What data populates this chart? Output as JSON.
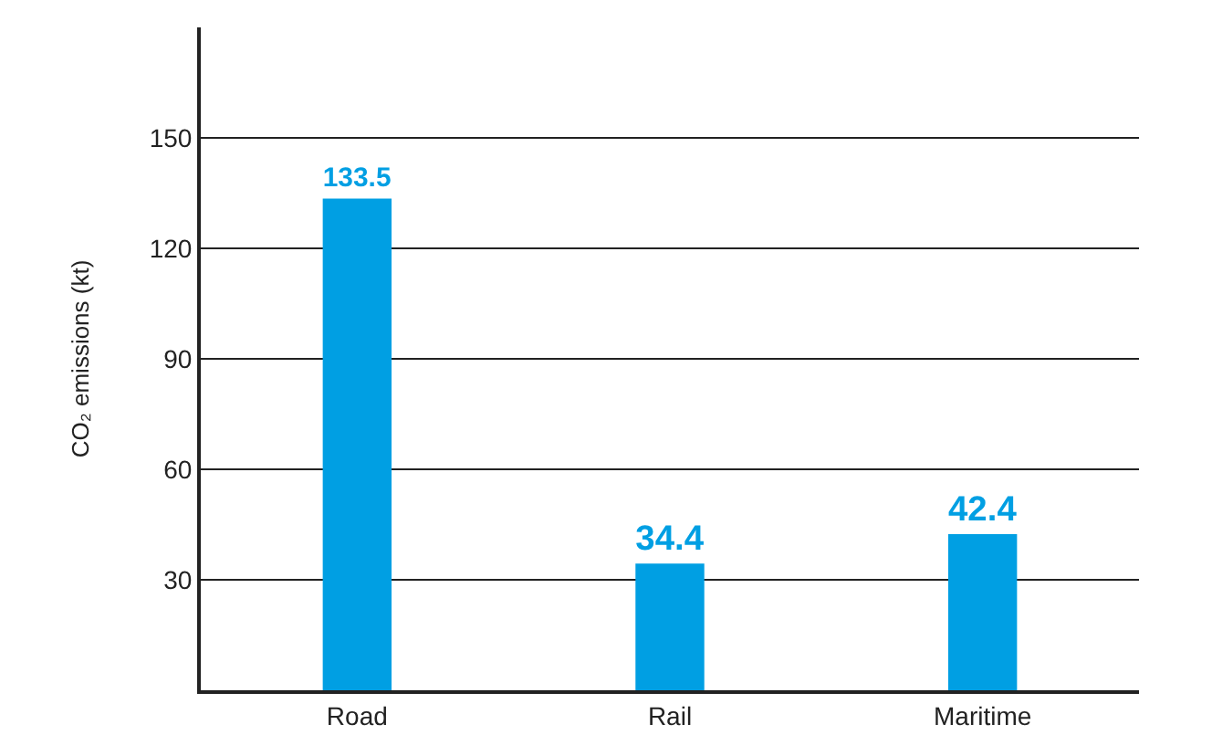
{
  "chart_data": {
    "type": "bar",
    "ylabel": "CO₂ emissions (kt)",
    "categories": [
      "Road",
      "Rail",
      "Maritime"
    ],
    "values": [
      133.5,
      34.4,
      42.4
    ],
    "color": "#009fe3",
    "ylim": [
      0,
      180
    ],
    "yticks": [
      30,
      60,
      90,
      120,
      150
    ],
    "grid": "y",
    "data_labels": true
  }
}
